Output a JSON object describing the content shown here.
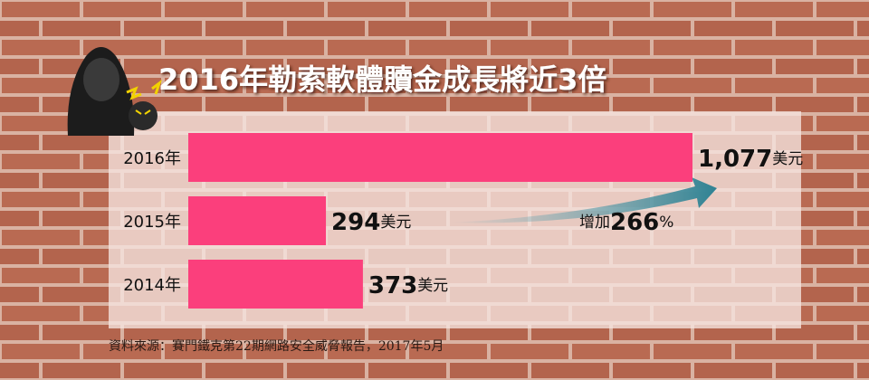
{
  "chart_data": {
    "type": "bar",
    "orientation": "horizontal",
    "title": "2016年勒索軟體贖金成長將近3倍",
    "categories": [
      "2016年",
      "2015年",
      "2014年"
    ],
    "values": [
      1077,
      294,
      373
    ],
    "value_labels": [
      "1,077美元",
      "294美元",
      "373美元"
    ],
    "color": "#fb3f7c",
    "annotation": "增加266%",
    "source": "資料來源：賽門鐵克第22期網路安全威脅報告，2017年5月"
  }
}
